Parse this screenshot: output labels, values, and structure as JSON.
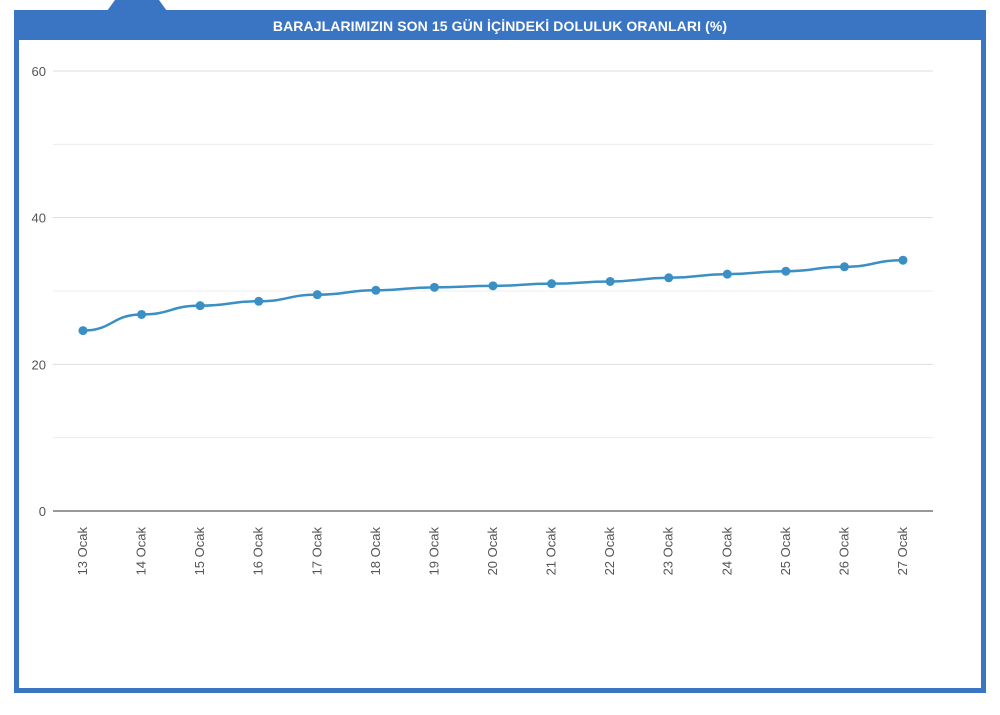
{
  "chart_data": {
    "type": "line",
    "title": "BARAJLARIMIZIN SON 15 GÜN İÇİNDEKİ DOLULUK ORANLARI (%)",
    "categories": [
      "13 Ocak",
      "14 Ocak",
      "15 Ocak",
      "16 Ocak",
      "17 Ocak",
      "18 Ocak",
      "19 Ocak",
      "20 Ocak",
      "21 Ocak",
      "22 Ocak",
      "23 Ocak",
      "24 Ocak",
      "25 Ocak",
      "26 Ocak",
      "27 Ocak"
    ],
    "series": [
      {
        "values": [
          24.6,
          26.8,
          28.0,
          28.6,
          29.5,
          30.1,
          30.5,
          30.7,
          31.0,
          31.3,
          31.8,
          32.3,
          32.7,
          33.3,
          34.2
        ]
      }
    ],
    "ylim": [
      0,
      60
    ],
    "yticks": [
      0,
      20,
      40,
      60
    ],
    "minor_grid": [
      10,
      30,
      50
    ],
    "grid": true,
    "legend": "none",
    "colors": {
      "line": "#3a8fc4",
      "frame": "#3a75c4",
      "grid": "#dddddd",
      "axis": "#333333"
    }
  }
}
